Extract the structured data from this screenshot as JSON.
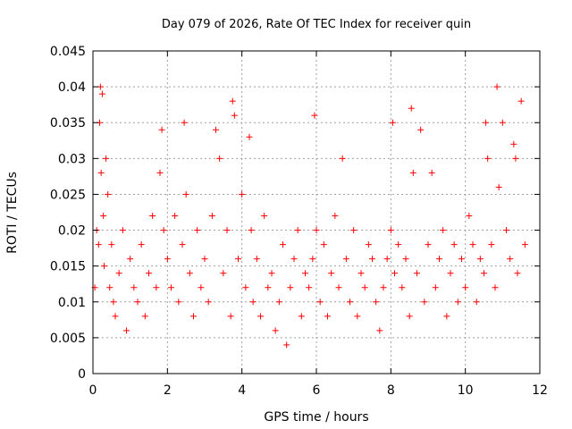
{
  "chart_data": {
    "type": "scatter",
    "title": "Day 079 of 2026, Rate Of TEC Index for receiver quin",
    "xlabel": "GPS time / hours",
    "ylabel": "ROTI / TECUs",
    "xlim": [
      0,
      12
    ],
    "ylim": [
      0,
      0.045
    ],
    "x_ticks": [
      "0",
      "2",
      "4",
      "6",
      "8",
      "10",
      "12"
    ],
    "y_ticks": [
      "0",
      "0.005",
      "0.01",
      "0.015",
      "0.02",
      "0.025",
      "0.03",
      "0.035",
      "0.04",
      "0.045"
    ],
    "grid": true,
    "marker": "+",
    "series": [
      {
        "name": "ROTI",
        "color": "#ff0000",
        "x": [
          0.05,
          0.1,
          0.15,
          0.18,
          0.2,
          0.22,
          0.25,
          0.28,
          0.3,
          0.35,
          0.4,
          0.45,
          0.5,
          0.55,
          0.6,
          0.7,
          0.8,
          0.9,
          1.0,
          1.1,
          1.2,
          1.3,
          1.4,
          1.5,
          1.6,
          1.7,
          1.8,
          1.85,
          1.9,
          2.0,
          2.1,
          2.2,
          2.3,
          2.4,
          2.45,
          2.5,
          2.6,
          2.7,
          2.8,
          2.9,
          3.0,
          3.1,
          3.2,
          3.3,
          3.4,
          3.5,
          3.6,
          3.7,
          3.75,
          3.8,
          3.9,
          4.0,
          4.1,
          4.2,
          4.25,
          4.3,
          4.4,
          4.5,
          4.6,
          4.7,
          4.8,
          4.9,
          5.0,
          5.1,
          5.2,
          5.3,
          5.4,
          5.5,
          5.6,
          5.7,
          5.8,
          5.9,
          5.95,
          6.0,
          6.1,
          6.2,
          6.3,
          6.4,
          6.5,
          6.6,
          6.7,
          6.8,
          6.9,
          7.0,
          7.1,
          7.2,
          7.3,
          7.4,
          7.5,
          7.6,
          7.7,
          7.8,
          7.9,
          8.0,
          8.05,
          8.1,
          8.2,
          8.3,
          8.4,
          8.5,
          8.55,
          8.6,
          8.7,
          8.8,
          8.9,
          9.0,
          9.1,
          9.2,
          9.3,
          9.4,
          9.5,
          9.6,
          9.7,
          9.8,
          9.9,
          10.0,
          10.1,
          10.2,
          10.3,
          10.4,
          10.5,
          10.55,
          10.6,
          10.7,
          10.8,
          10.85,
          10.9,
          11.0,
          11.1,
          11.2,
          11.3,
          11.35,
          11.4,
          11.5,
          11.6
        ],
        "y": [
          0.012,
          0.02,
          0.018,
          0.035,
          0.04,
          0.028,
          0.039,
          0.022,
          0.015,
          0.03,
          0.025,
          0.012,
          0.018,
          0.01,
          0.008,
          0.014,
          0.02,
          0.006,
          0.016,
          0.012,
          0.01,
          0.018,
          0.008,
          0.014,
          0.022,
          0.012,
          0.028,
          0.034,
          0.02,
          0.016,
          0.012,
          0.022,
          0.01,
          0.018,
          0.035,
          0.025,
          0.014,
          0.008,
          0.02,
          0.012,
          0.016,
          0.01,
          0.022,
          0.034,
          0.03,
          0.014,
          0.02,
          0.008,
          0.038,
          0.036,
          0.016,
          0.025,
          0.012,
          0.033,
          0.02,
          0.01,
          0.016,
          0.008,
          0.022,
          0.012,
          0.014,
          0.006,
          0.01,
          0.018,
          0.004,
          0.012,
          0.016,
          0.02,
          0.008,
          0.014,
          0.012,
          0.016,
          0.036,
          0.02,
          0.01,
          0.018,
          0.008,
          0.014,
          0.022,
          0.012,
          0.03,
          0.016,
          0.01,
          0.02,
          0.008,
          0.014,
          0.012,
          0.018,
          0.016,
          0.01,
          0.006,
          0.012,
          0.016,
          0.02,
          0.035,
          0.014,
          0.018,
          0.012,
          0.016,
          0.008,
          0.037,
          0.028,
          0.014,
          0.034,
          0.01,
          0.018,
          0.028,
          0.012,
          0.016,
          0.02,
          0.008,
          0.014,
          0.018,
          0.01,
          0.016,
          0.012,
          0.022,
          0.018,
          0.01,
          0.016,
          0.014,
          0.035,
          0.03,
          0.018,
          0.012,
          0.04,
          0.026,
          0.035,
          0.02,
          0.016,
          0.032,
          0.03,
          0.014,
          0.038,
          0.018
        ]
      }
    ]
  }
}
